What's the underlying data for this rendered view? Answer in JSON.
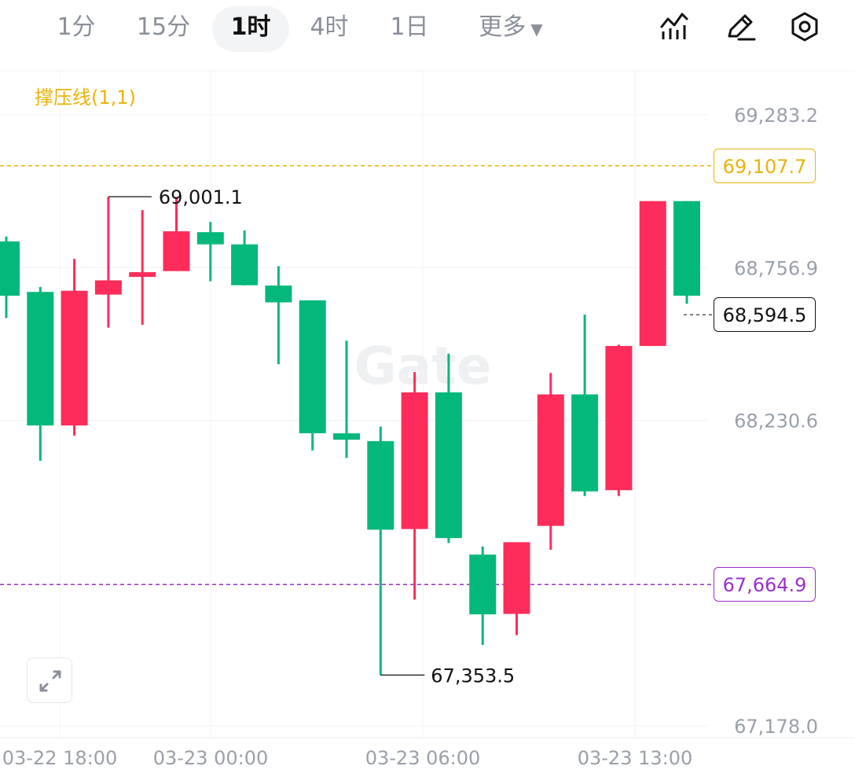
{
  "toolbar": {
    "timeframes": [
      "1分",
      "15分",
      "1时",
      "4时",
      "1日"
    ],
    "active_timeframe": "1时",
    "more_label": "更多",
    "icons": [
      "indicator-icon",
      "draw-pen-icon",
      "settings-gear-icon"
    ]
  },
  "indicator": {
    "label": "撑压线(1,1)"
  },
  "price_tags": {
    "resistance": "69,107.7",
    "current": "68,594.5",
    "support": "67,664.9"
  },
  "colors": {
    "up": "#fd2c5a",
    "down": "#03b87a",
    "resistance": "#eab308",
    "support": "#9b30c6"
  },
  "chart_data": {
    "type": "candlestick",
    "y_axis_ticks": [
      "69,283.2",
      "68,756.9",
      "68,230.6",
      "67,178.0"
    ],
    "x_axis_ticks": [
      "03-22 18:00",
      "03-23 00:00",
      "03-23 06:00",
      "03-23 13:00"
    ],
    "ylim": [
      67178.0,
      69283.2
    ],
    "high_annotation": "69,001.1",
    "low_annotation": "67,353.5",
    "resistance_line": 69107.7,
    "support_line": 67664.9,
    "current_price": 68594.5,
    "watermark": "Gate",
    "candles": [
      {
        "open": 68847,
        "close": 68660,
        "high": 68864,
        "low": 68583
      },
      {
        "open": 68673,
        "close": 68213,
        "high": 68690,
        "low": 68091
      },
      {
        "open": 68213,
        "close": 68677,
        "high": 68787,
        "low": 68178
      },
      {
        "open": 68664,
        "close": 68713,
        "high": 69001,
        "low": 68550
      },
      {
        "open": 68726,
        "close": 68741,
        "high": 68955,
        "low": 68560
      },
      {
        "open": 68745,
        "close": 68882,
        "high": 69001,
        "low": 68745
      },
      {
        "open": 68879,
        "close": 68837,
        "high": 68914,
        "low": 68710
      },
      {
        "open": 68837,
        "close": 68696,
        "high": 68885,
        "low": 68696
      },
      {
        "open": 68695,
        "close": 68637,
        "high": 68762,
        "low": 68424
      },
      {
        "open": 68644,
        "close": 68186,
        "high": 68644,
        "low": 68127
      },
      {
        "open": 68186,
        "close": 68164,
        "high": 68505,
        "low": 68101
      },
      {
        "open": 68159,
        "close": 67854,
        "high": 68209,
        "low": 67353
      },
      {
        "open": 67856,
        "close": 68327,
        "high": 68397,
        "low": 67613
      },
      {
        "open": 68327,
        "close": 67825,
        "high": 68460,
        "low": 67808
      },
      {
        "open": 67768,
        "close": 67562,
        "high": 67796,
        "low": 67457
      },
      {
        "open": 67564,
        "close": 67811,
        "high": 67796,
        "low": 67491
      },
      {
        "open": 67867,
        "close": 68320,
        "high": 68394,
        "low": 67785
      },
      {
        "open": 68320,
        "close": 67986,
        "high": 68595,
        "low": 67970
      },
      {
        "open": 67990,
        "close": 68487,
        "high": 68491,
        "low": 67970
      },
      {
        "open": 68487,
        "close": 68986,
        "high": 68986,
        "low": 68487
      },
      {
        "open": 68986,
        "close": 68660,
        "high": 68986,
        "low": 68632
      }
    ]
  }
}
